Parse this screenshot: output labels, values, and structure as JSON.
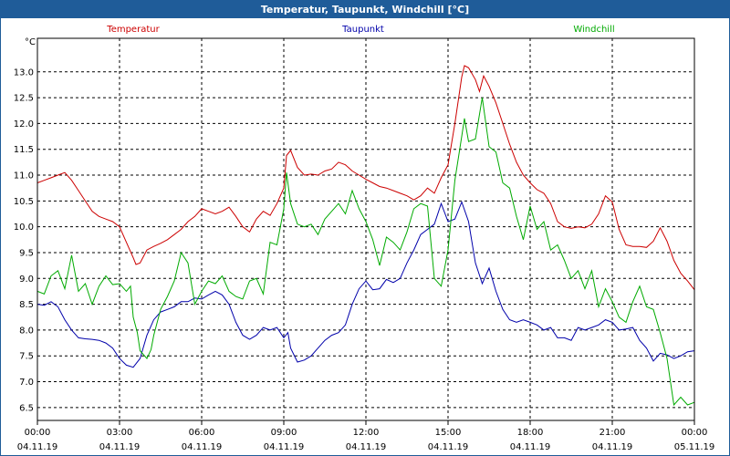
{
  "window": {
    "title": "Temperatur, Taupunkt, Windchill [°C]"
  },
  "chart_data": {
    "type": "line",
    "title": "Temperatur, Taupunkt, Windchill [°C]",
    "ylabel": "°C",
    "ylim": [
      6.25,
      13.65
    ],
    "y_ticks": [
      "6.5",
      "7.0",
      "7.5",
      "8.0",
      "8.5",
      "9.0",
      "9.5",
      "10.0",
      "10.5",
      "11.0",
      "11.5",
      "12.0",
      "12.5",
      "13.0"
    ],
    "x_ticks": [
      {
        "time": "00:00",
        "date": "04.11.19"
      },
      {
        "time": "03:00",
        "date": "04.11.19"
      },
      {
        "time": "06:00",
        "date": "04.11.19"
      },
      {
        "time": "09:00",
        "date": "04.11.19"
      },
      {
        "time": "12:00",
        "date": "04.11.19"
      },
      {
        "time": "15:00",
        "date": "04.11.19"
      },
      {
        "time": "18:00",
        "date": "04.11.19"
      },
      {
        "time": "21:00",
        "date": "04.11.19"
      },
      {
        "time": "00:00",
        "date": "05.11.19"
      }
    ],
    "x_unit": "hours",
    "xlim": [
      0,
      24
    ],
    "grid": true,
    "legend_position": "top",
    "series": [
      {
        "name": "Temperatur",
        "color": "#cc0000",
        "points": [
          [
            0.0,
            10.85
          ],
          [
            0.25,
            10.9
          ],
          [
            0.5,
            10.95
          ],
          [
            0.75,
            11.0
          ],
          [
            1.0,
            11.05
          ],
          [
            1.25,
            10.9
          ],
          [
            1.5,
            10.7
          ],
          [
            1.75,
            10.5
          ],
          [
            2.0,
            10.3
          ],
          [
            2.25,
            10.2
          ],
          [
            2.5,
            10.15
          ],
          [
            2.75,
            10.1
          ],
          [
            3.0,
            10.0
          ],
          [
            3.25,
            9.7
          ],
          [
            3.5,
            9.4
          ],
          [
            3.6,
            9.27
          ],
          [
            3.75,
            9.3
          ],
          [
            4.0,
            9.55
          ],
          [
            4.25,
            9.62
          ],
          [
            4.5,
            9.68
          ],
          [
            4.75,
            9.75
          ],
          [
            5.0,
            9.85
          ],
          [
            5.25,
            9.95
          ],
          [
            5.5,
            10.1
          ],
          [
            5.75,
            10.2
          ],
          [
            6.0,
            10.35
          ],
          [
            6.25,
            10.3
          ],
          [
            6.5,
            10.25
          ],
          [
            6.75,
            10.3
          ],
          [
            7.0,
            10.38
          ],
          [
            7.25,
            10.2
          ],
          [
            7.5,
            10.0
          ],
          [
            7.75,
            9.9
          ],
          [
            8.0,
            10.15
          ],
          [
            8.25,
            10.3
          ],
          [
            8.5,
            10.22
          ],
          [
            8.75,
            10.45
          ],
          [
            9.0,
            10.75
          ],
          [
            9.1,
            11.38
          ],
          [
            9.25,
            11.48
          ],
          [
            9.5,
            11.15
          ],
          [
            9.75,
            11.0
          ],
          [
            10.0,
            11.02
          ],
          [
            10.25,
            11.0
          ],
          [
            10.5,
            11.08
          ],
          [
            10.75,
            11.12
          ],
          [
            11.0,
            11.25
          ],
          [
            11.25,
            11.2
          ],
          [
            11.5,
            11.08
          ],
          [
            11.75,
            11.0
          ],
          [
            12.0,
            10.92
          ],
          [
            12.25,
            10.85
          ],
          [
            12.5,
            10.78
          ],
          [
            12.75,
            10.75
          ],
          [
            13.0,
            10.7
          ],
          [
            13.25,
            10.65
          ],
          [
            13.5,
            10.6
          ],
          [
            13.75,
            10.52
          ],
          [
            14.0,
            10.6
          ],
          [
            14.25,
            10.75
          ],
          [
            14.5,
            10.65
          ],
          [
            14.75,
            10.95
          ],
          [
            15.0,
            11.2
          ],
          [
            15.25,
            12.0
          ],
          [
            15.5,
            12.9
          ],
          [
            15.6,
            13.12
          ],
          [
            15.75,
            13.08
          ],
          [
            16.0,
            12.85
          ],
          [
            16.15,
            12.62
          ],
          [
            16.3,
            12.92
          ],
          [
            16.5,
            12.72
          ],
          [
            16.75,
            12.4
          ],
          [
            17.0,
            12.0
          ],
          [
            17.25,
            11.6
          ],
          [
            17.5,
            11.25
          ],
          [
            17.75,
            11.0
          ],
          [
            18.0,
            10.85
          ],
          [
            18.25,
            10.72
          ],
          [
            18.5,
            10.65
          ],
          [
            18.75,
            10.45
          ],
          [
            19.0,
            10.1
          ],
          [
            19.25,
            10.0
          ],
          [
            19.5,
            9.97
          ],
          [
            19.75,
            10.0
          ],
          [
            20.0,
            9.98
          ],
          [
            20.25,
            10.05
          ],
          [
            20.5,
            10.25
          ],
          [
            20.75,
            10.6
          ],
          [
            21.0,
            10.48
          ],
          [
            21.25,
            9.95
          ],
          [
            21.5,
            9.65
          ],
          [
            21.75,
            9.62
          ],
          [
            22.0,
            9.62
          ],
          [
            22.25,
            9.6
          ],
          [
            22.5,
            9.72
          ],
          [
            22.75,
            9.98
          ],
          [
            23.0,
            9.72
          ],
          [
            23.25,
            9.35
          ],
          [
            23.5,
            9.1
          ],
          [
            23.75,
            8.95
          ],
          [
            24.0,
            8.78
          ]
        ]
      },
      {
        "name": "Taupunkt",
        "color": "#0000aa",
        "points": [
          [
            0.0,
            8.5
          ],
          [
            0.25,
            8.48
          ],
          [
            0.5,
            8.55
          ],
          [
            0.75,
            8.45
          ],
          [
            1.0,
            8.2
          ],
          [
            1.25,
            8.0
          ],
          [
            1.5,
            7.85
          ],
          [
            1.75,
            7.83
          ],
          [
            2.0,
            7.82
          ],
          [
            2.25,
            7.8
          ],
          [
            2.5,
            7.75
          ],
          [
            2.75,
            7.65
          ],
          [
            3.0,
            7.45
          ],
          [
            3.25,
            7.32
          ],
          [
            3.5,
            7.28
          ],
          [
            3.75,
            7.45
          ],
          [
            4.0,
            7.9
          ],
          [
            4.25,
            8.2
          ],
          [
            4.5,
            8.35
          ],
          [
            4.75,
            8.4
          ],
          [
            5.0,
            8.45
          ],
          [
            5.25,
            8.55
          ],
          [
            5.5,
            8.55
          ],
          [
            5.75,
            8.62
          ],
          [
            6.0,
            8.6
          ],
          [
            6.25,
            8.68
          ],
          [
            6.5,
            8.75
          ],
          [
            6.75,
            8.68
          ],
          [
            7.0,
            8.5
          ],
          [
            7.25,
            8.15
          ],
          [
            7.5,
            7.9
          ],
          [
            7.75,
            7.82
          ],
          [
            8.0,
            7.9
          ],
          [
            8.25,
            8.05
          ],
          [
            8.5,
            8.0
          ],
          [
            8.75,
            8.05
          ],
          [
            9.0,
            7.85
          ],
          [
            9.15,
            7.95
          ],
          [
            9.25,
            7.65
          ],
          [
            9.5,
            7.38
          ],
          [
            9.75,
            7.42
          ],
          [
            10.0,
            7.5
          ],
          [
            10.25,
            7.65
          ],
          [
            10.5,
            7.8
          ],
          [
            10.75,
            7.9
          ],
          [
            11.0,
            7.95
          ],
          [
            11.25,
            8.1
          ],
          [
            11.5,
            8.5
          ],
          [
            11.75,
            8.8
          ],
          [
            12.0,
            8.95
          ],
          [
            12.25,
            8.78
          ],
          [
            12.5,
            8.8
          ],
          [
            12.75,
            8.98
          ],
          [
            13.0,
            8.92
          ],
          [
            13.25,
            9.0
          ],
          [
            13.5,
            9.3
          ],
          [
            13.75,
            9.55
          ],
          [
            14.0,
            9.85
          ],
          [
            14.25,
            9.95
          ],
          [
            14.5,
            10.05
          ],
          [
            14.75,
            10.45
          ],
          [
            15.0,
            10.1
          ],
          [
            15.25,
            10.15
          ],
          [
            15.5,
            10.48
          ],
          [
            15.75,
            10.1
          ],
          [
            16.0,
            9.3
          ],
          [
            16.25,
            8.9
          ],
          [
            16.5,
            9.2
          ],
          [
            16.75,
            8.75
          ],
          [
            17.0,
            8.4
          ],
          [
            17.25,
            8.2
          ],
          [
            17.5,
            8.15
          ],
          [
            17.75,
            8.2
          ],
          [
            18.0,
            8.15
          ],
          [
            18.25,
            8.1
          ],
          [
            18.5,
            8.0
          ],
          [
            18.75,
            8.05
          ],
          [
            19.0,
            7.85
          ],
          [
            19.25,
            7.85
          ],
          [
            19.5,
            7.8
          ],
          [
            19.75,
            8.05
          ],
          [
            20.0,
            8.0
          ],
          [
            20.25,
            8.05
          ],
          [
            20.5,
            8.1
          ],
          [
            20.75,
            8.2
          ],
          [
            21.0,
            8.15
          ],
          [
            21.25,
            8.0
          ],
          [
            21.5,
            8.02
          ],
          [
            21.75,
            8.05
          ],
          [
            22.0,
            7.8
          ],
          [
            22.25,
            7.65
          ],
          [
            22.5,
            7.4
          ],
          [
            22.75,
            7.55
          ],
          [
            23.0,
            7.52
          ],
          [
            23.25,
            7.45
          ],
          [
            23.5,
            7.5
          ],
          [
            23.75,
            7.58
          ],
          [
            24.0,
            7.6
          ]
        ]
      },
      {
        "name": "Windchill",
        "color": "#00aa00",
        "points": [
          [
            0.0,
            8.75
          ],
          [
            0.25,
            8.7
          ],
          [
            0.5,
            9.05
          ],
          [
            0.75,
            9.15
          ],
          [
            1.0,
            8.8
          ],
          [
            1.25,
            9.45
          ],
          [
            1.5,
            8.75
          ],
          [
            1.75,
            8.9
          ],
          [
            2.0,
            8.5
          ],
          [
            2.25,
            8.85
          ],
          [
            2.5,
            9.05
          ],
          [
            2.75,
            8.88
          ],
          [
            3.0,
            8.9
          ],
          [
            3.25,
            8.75
          ],
          [
            3.4,
            8.85
          ],
          [
            3.5,
            8.25
          ],
          [
            3.65,
            7.95
          ],
          [
            3.75,
            7.6
          ],
          [
            4.0,
            7.45
          ],
          [
            4.15,
            7.62
          ],
          [
            4.25,
            7.9
          ],
          [
            4.5,
            8.4
          ],
          [
            4.75,
            8.65
          ],
          [
            5.0,
            8.95
          ],
          [
            5.25,
            9.5
          ],
          [
            5.5,
            9.3
          ],
          [
            5.75,
            8.5
          ],
          [
            6.0,
            8.75
          ],
          [
            6.25,
            8.95
          ],
          [
            6.5,
            8.9
          ],
          [
            6.75,
            9.05
          ],
          [
            7.0,
            8.75
          ],
          [
            7.25,
            8.65
          ],
          [
            7.5,
            8.6
          ],
          [
            7.75,
            8.95
          ],
          [
            8.0,
            9.0
          ],
          [
            8.25,
            8.7
          ],
          [
            8.5,
            9.7
          ],
          [
            8.75,
            9.65
          ],
          [
            9.0,
            10.35
          ],
          [
            9.1,
            11.05
          ],
          [
            9.25,
            10.45
          ],
          [
            9.5,
            10.05
          ],
          [
            9.75,
            10.0
          ],
          [
            10.0,
            10.05
          ],
          [
            10.25,
            9.85
          ],
          [
            10.5,
            10.15
          ],
          [
            10.75,
            10.3
          ],
          [
            11.0,
            10.45
          ],
          [
            11.25,
            10.25
          ],
          [
            11.5,
            10.7
          ],
          [
            11.75,
            10.35
          ],
          [
            12.0,
            10.1
          ],
          [
            12.25,
            9.75
          ],
          [
            12.5,
            9.25
          ],
          [
            12.75,
            9.8
          ],
          [
            13.0,
            9.7
          ],
          [
            13.25,
            9.55
          ],
          [
            13.5,
            9.9
          ],
          [
            13.75,
            10.35
          ],
          [
            14.0,
            10.45
          ],
          [
            14.25,
            10.4
          ],
          [
            14.5,
            9.0
          ],
          [
            14.75,
            8.85
          ],
          [
            15.0,
            9.55
          ],
          [
            15.25,
            10.9
          ],
          [
            15.5,
            11.75
          ],
          [
            15.6,
            12.1
          ],
          [
            15.75,
            11.65
          ],
          [
            16.0,
            11.7
          ],
          [
            16.25,
            12.5
          ],
          [
            16.5,
            11.55
          ],
          [
            16.75,
            11.45
          ],
          [
            17.0,
            10.85
          ],
          [
            17.25,
            10.75
          ],
          [
            17.5,
            10.2
          ],
          [
            17.75,
            9.75
          ],
          [
            18.0,
            10.4
          ],
          [
            18.25,
            9.95
          ],
          [
            18.5,
            10.1
          ],
          [
            18.75,
            9.55
          ],
          [
            19.0,
            9.65
          ],
          [
            19.25,
            9.35
          ],
          [
            19.5,
            9.0
          ],
          [
            19.75,
            9.15
          ],
          [
            20.0,
            8.8
          ],
          [
            20.25,
            9.15
          ],
          [
            20.5,
            8.45
          ],
          [
            20.75,
            8.8
          ],
          [
            21.0,
            8.55
          ],
          [
            21.25,
            8.25
          ],
          [
            21.5,
            8.15
          ],
          [
            21.75,
            8.55
          ],
          [
            22.0,
            8.85
          ],
          [
            22.25,
            8.45
          ],
          [
            22.5,
            8.4
          ],
          [
            22.75,
            7.95
          ],
          [
            23.0,
            7.45
          ],
          [
            23.25,
            6.55
          ],
          [
            23.5,
            6.7
          ],
          [
            23.75,
            6.55
          ],
          [
            24.0,
            6.6
          ]
        ]
      }
    ]
  }
}
